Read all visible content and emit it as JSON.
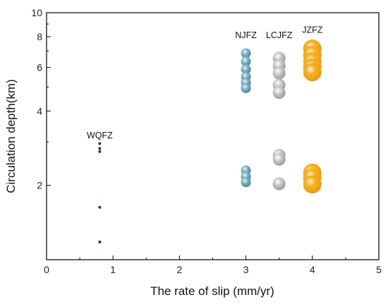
{
  "chart_data": {
    "type": "scatter",
    "title": "",
    "xlabel": "The rate of slip (mm/yr)",
    "ylabel": "Circulation depth(km)",
    "xlim": [
      0,
      5
    ],
    "ylim": [
      1,
      10
    ],
    "yscale": "log",
    "x_ticks": [
      0,
      1,
      2,
      3,
      4,
      5
    ],
    "y_ticks": [
      2,
      4,
      6,
      8,
      10
    ],
    "grid": false,
    "legend": "none",
    "annotations": [
      {
        "text": "WQFZ",
        "x": 0.8,
        "y": 3.1
      },
      {
        "text": "NJFZ",
        "x": 3.0,
        "y": 7.9
      },
      {
        "text": "LCJFZ",
        "x": 3.5,
        "y": 7.9
      },
      {
        "text": "JZFZ",
        "x": 4.0,
        "y": 8.3
      }
    ],
    "series": [
      {
        "label": "WQFZ",
        "color": "#2b2f6b",
        "marker": "dot",
        "points": [
          {
            "x": 0.8,
            "y": 2.95
          },
          {
            "x": 0.8,
            "y": 2.82
          },
          {
            "x": 0.8,
            "y": 2.74
          },
          {
            "x": 0.8,
            "y": 1.63
          },
          {
            "x": 0.8,
            "y": 1.18
          }
        ]
      },
      {
        "label": "NJFZ",
        "color": "#6ea3b5",
        "marker": "sphere-small",
        "points": [
          {
            "x": 3.0,
            "y": 6.85
          },
          {
            "x": 3.0,
            "y": 6.35
          },
          {
            "x": 3.0,
            "y": 5.9
          },
          {
            "x": 3.0,
            "y": 5.5
          },
          {
            "x": 3.0,
            "y": 5.2
          },
          {
            "x": 3.0,
            "y": 4.95
          },
          {
            "x": 3.0,
            "y": 2.3
          },
          {
            "x": 3.0,
            "y": 2.17
          },
          {
            "x": 3.0,
            "y": 2.06
          }
        ]
      },
      {
        "label": "LCJFZ",
        "color": "#c4c4c4",
        "marker": "sphere-medium",
        "points": [
          {
            "x": 3.5,
            "y": 6.55
          },
          {
            "x": 3.5,
            "y": 6.1
          },
          {
            "x": 3.5,
            "y": 5.7
          },
          {
            "x": 3.5,
            "y": 5.1
          },
          {
            "x": 3.5,
            "y": 4.75
          },
          {
            "x": 3.5,
            "y": 2.65
          },
          {
            "x": 3.5,
            "y": 2.55
          },
          {
            "x": 3.5,
            "y": 2.03
          }
        ]
      },
      {
        "label": "JZFZ",
        "color": "#f2a51a",
        "marker": "sphere-large",
        "points": [
          {
            "x": 4.0,
            "y": 7.15
          },
          {
            "x": 4.0,
            "y": 6.75
          },
          {
            "x": 4.0,
            "y": 6.35
          },
          {
            "x": 4.0,
            "y": 6.0
          },
          {
            "x": 4.0,
            "y": 5.75
          },
          {
            "x": 4.0,
            "y": 2.25
          },
          {
            "x": 4.0,
            "y": 2.15
          },
          {
            "x": 4.0,
            "y": 2.02
          }
        ]
      }
    ]
  }
}
